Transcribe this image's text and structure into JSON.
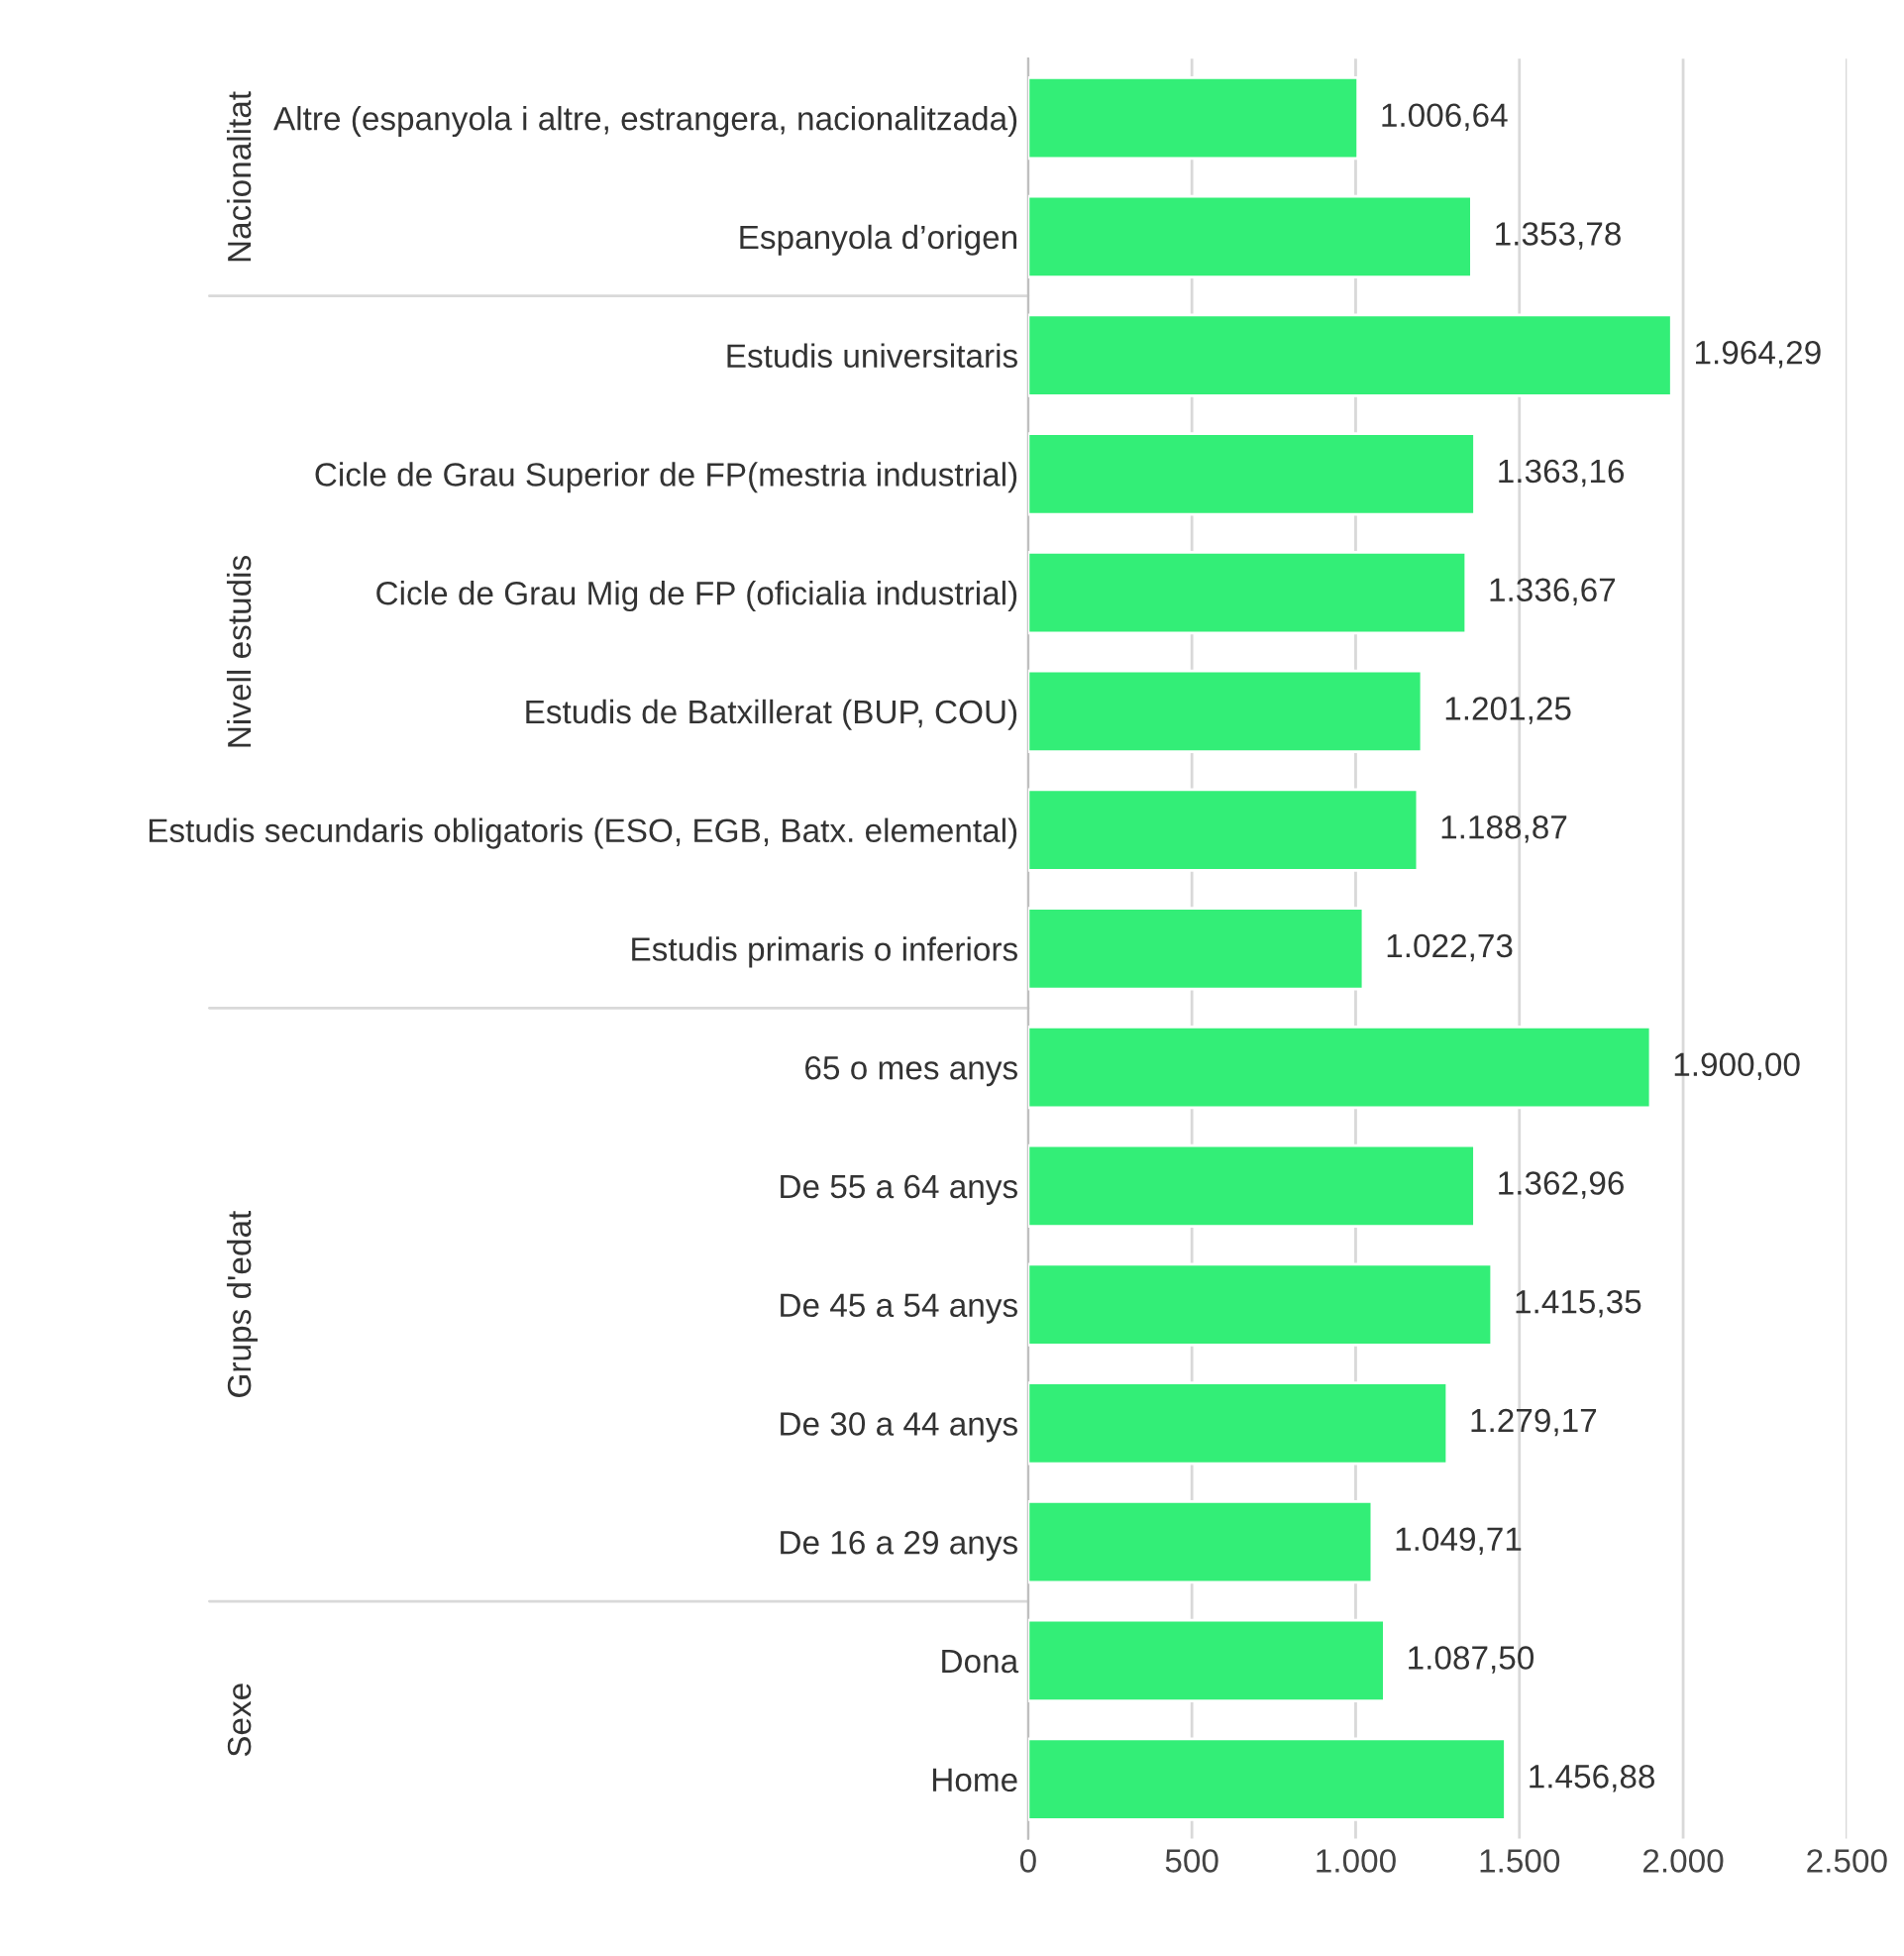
{
  "chart_data": {
    "type": "bar",
    "orientation": "horizontal",
    "categories": [
      "Altre (espanyola i altre, estrangera, nacionalitzada)",
      "Espanyola d’origen",
      "Estudis universitaris",
      "Cicle de Grau Superior de FP(mestria industrial)",
      "Cicle de Grau Mig de FP (oficialia industrial)",
      "Estudis de Batxillerat (BUP, COU)",
      "Estudis secundaris obligatoris (ESO, EGB, Batx. elemental)",
      "Estudis primaris o inferiors",
      "65 o mes anys",
      "De 55 a 64 anys",
      "De 45 a 54 anys",
      "De 30 a 44 anys",
      "De 16 a 29 anys",
      "Dona",
      "Home"
    ],
    "values": [
      1006.64,
      1353.78,
      1964.29,
      1363.16,
      1336.67,
      1201.25,
      1188.87,
      1022.73,
      1900.0,
      1362.96,
      1415.35,
      1279.17,
      1049.71,
      1087.5,
      1456.88
    ],
    "value_labels": [
      "1.006,64",
      "1.353,78",
      "1.964,29",
      "1.363,16",
      "1.336,67",
      "1.201,25",
      "1.188,87",
      "1.022,73",
      "1.900,00",
      "1.362,96",
      "1.415,35",
      "1.279,17",
      "1.049,71",
      "1.087,50",
      "1.456,88"
    ],
    "color": "#33ee77",
    "xlim": [
      0,
      2500
    ],
    "xticks": [
      0,
      500,
      {
        "value": 1000,
        "label": "1.000"
      },
      {
        "value": 1500,
        "label": "1.500"
      },
      {
        "value": 2000,
        "label": "2.000"
      },
      {
        "value": 2500,
        "label": "2.500"
      }
    ],
    "grid": "x",
    "legend": false,
    "annotations": [
      "Nacionalitat",
      "Nivell estudis",
      "Grups d'edat",
      "Sexe"
    ]
  }
}
